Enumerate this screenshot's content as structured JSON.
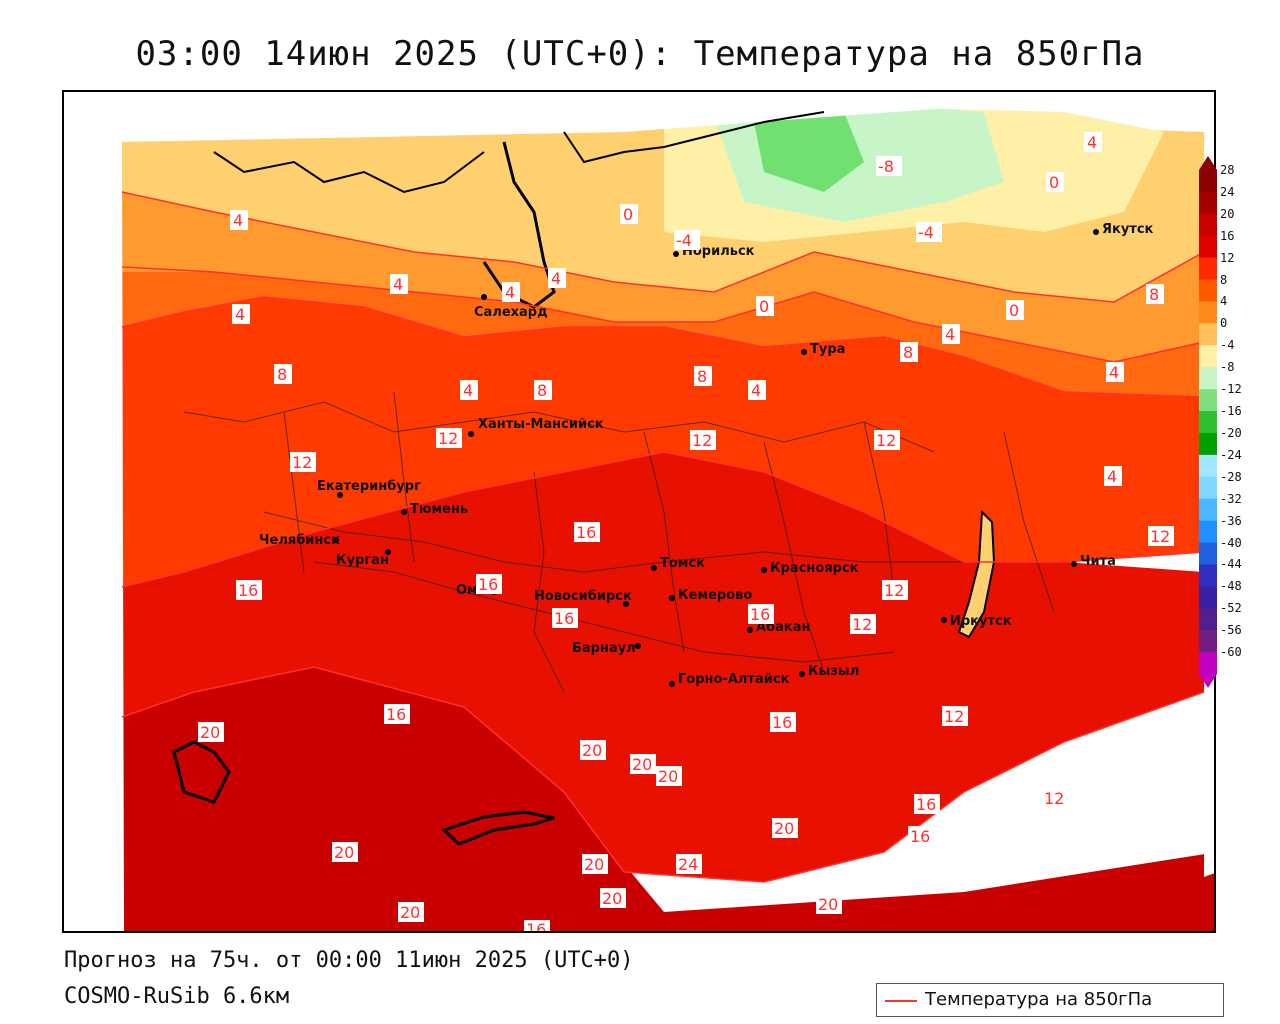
{
  "title": "03:00 14июн 2025 (UTC+0): Температура на 850гПа",
  "footer": {
    "forecast": "Прогноз на 75ч. от 00:00 11июн 2025 (UTC+0)",
    "model": "COSMO-RuSib 6.6км"
  },
  "legend": {
    "label": "Температура на 850гПа",
    "line_color": "#ff3030"
  },
  "colorbar": {
    "ticks": [
      "28",
      "24",
      "20",
      "16",
      "12",
      "8",
      "4",
      "0",
      "-4",
      "-8",
      "-12",
      "-16",
      "-20",
      "-24",
      "-28",
      "-32",
      "-36",
      "-40",
      "-44",
      "-48",
      "-52",
      "-56",
      "-60"
    ],
    "colors": [
      "#8b0000",
      "#a80000",
      "#c80000",
      "#e00000",
      "#ff2a00",
      "#ff5a00",
      "#ff8a1a",
      "#ffc25a",
      "#fff0a8",
      "#c8f5c8",
      "#80e080",
      "#30c030",
      "#00a000",
      "#a0e8ff",
      "#80d8ff",
      "#4ab8ff",
      "#2090ff",
      "#2060e0",
      "#3030c0",
      "#3820a0",
      "#502090",
      "#702080",
      "#c000c0"
    ]
  },
  "cities": [
    {
      "name": "Норильск"
    },
    {
      "name": "Якутск"
    },
    {
      "name": "Салехард"
    },
    {
      "name": "Тура"
    },
    {
      "name": "Ханты-Мансийск"
    },
    {
      "name": "Екатеринбург"
    },
    {
      "name": "Тюмень"
    },
    {
      "name": "Челябинск"
    },
    {
      "name": "Курган"
    },
    {
      "name": "Омск"
    },
    {
      "name": "Новосибирск"
    },
    {
      "name": "Томск"
    },
    {
      "name": "Красноярск"
    },
    {
      "name": "Кемерово"
    },
    {
      "name": "Абакан"
    },
    {
      "name": "Барнаул"
    },
    {
      "name": "Горно-Алтайск"
    },
    {
      "name": "Кызыл"
    },
    {
      "name": "Иркутск"
    },
    {
      "name": "Чита"
    }
  ],
  "isotherm_labels": [
    "4",
    "0",
    "-4",
    "-8",
    "4",
    "0",
    "-4",
    "4",
    "4",
    "4",
    "4",
    "4",
    "0",
    "0",
    "4",
    "8",
    "8",
    "4",
    "8",
    "4",
    "8",
    "4",
    "8",
    "12",
    "12",
    "12",
    "12",
    "12",
    "16",
    "16",
    "16",
    "16",
    "16",
    "16",
    "16",
    "12",
    "12",
    "12",
    "12",
    "16",
    "16",
    "20",
    "20",
    "20",
    "20",
    "20",
    "20",
    "20",
    "24",
    "20",
    "20",
    "20",
    "16"
  ]
}
